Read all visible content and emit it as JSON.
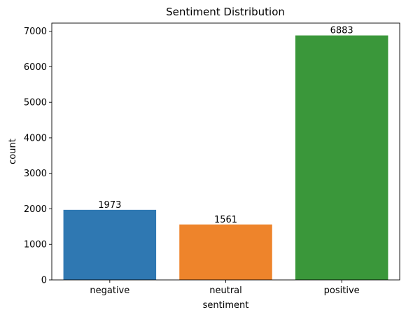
{
  "chart_data": {
    "type": "bar",
    "title": "Sentiment Distribution",
    "xlabel": "sentiment",
    "ylabel": "count",
    "categories": [
      "negative",
      "neutral",
      "positive"
    ],
    "values": [
      1973,
      1561,
      6883
    ],
    "data_labels": [
      "1973",
      "1561",
      "6883"
    ],
    "colors": [
      "#2f78b2",
      "#ee842b",
      "#3a973a"
    ],
    "ylim": [
      0,
      7230
    ],
    "yticks": [
      0,
      1000,
      2000,
      3000,
      4000,
      5000,
      6000,
      7000
    ],
    "ytick_labels": [
      "0",
      "1000",
      "2000",
      "3000",
      "4000",
      "5000",
      "6000",
      "7000"
    ],
    "grid": false,
    "legend": "none"
  }
}
